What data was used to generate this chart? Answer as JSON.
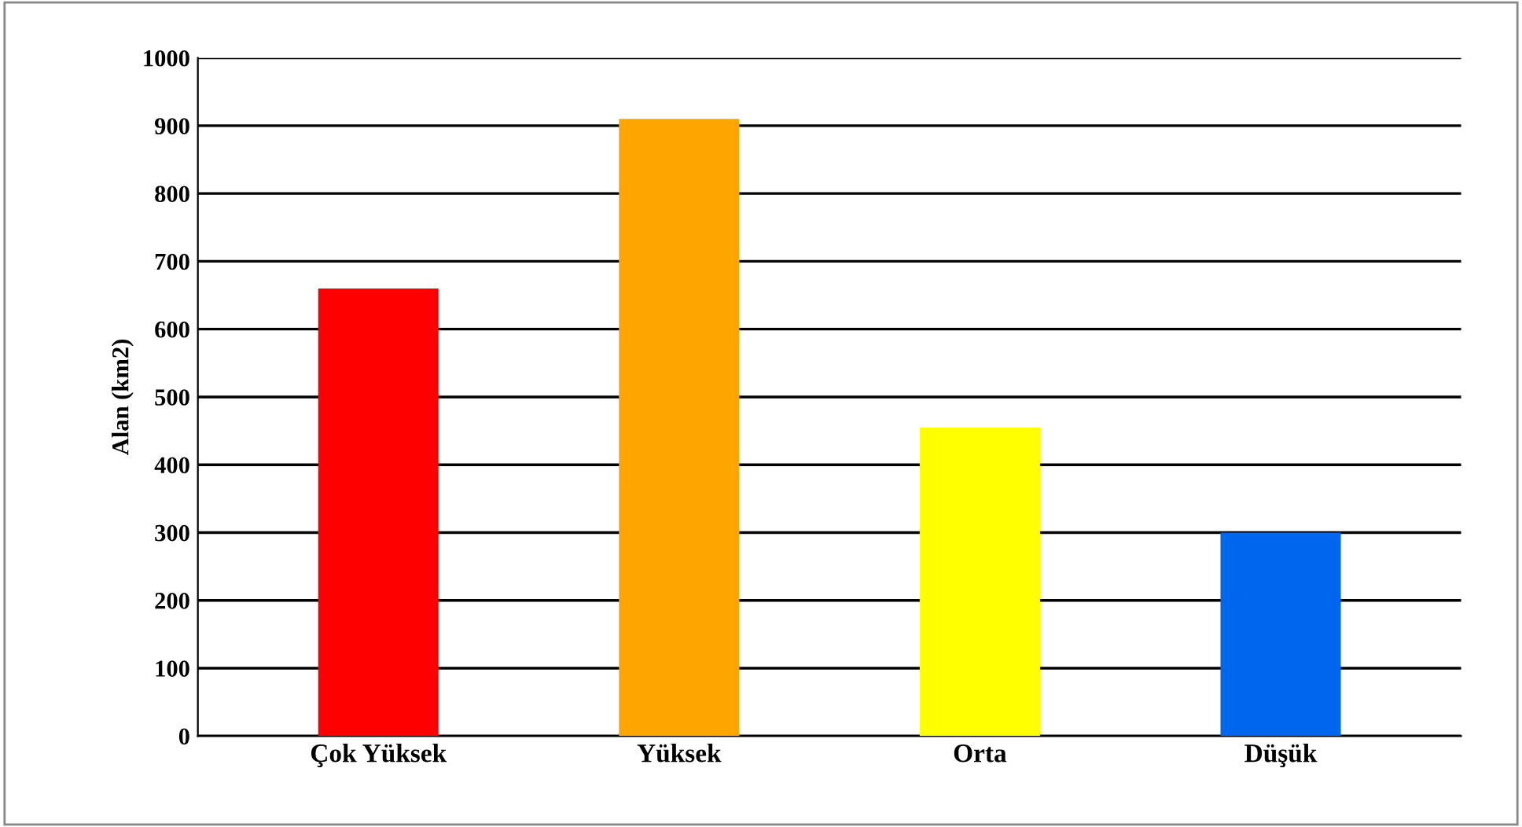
{
  "chart_data": {
    "type": "bar",
    "ylabel": "Alan (km2)",
    "categories": [
      "Çok Yüksek",
      "Yüksek",
      "Orta",
      "Düşük"
    ],
    "values": [
      660,
      910,
      455,
      300
    ],
    "colors": [
      "#ff0000",
      "#ffa500",
      "#ffff00",
      "#0066ee"
    ],
    "ylim": [
      0,
      1000
    ],
    "yticks": [
      0,
      100,
      200,
      300,
      400,
      500,
      600,
      700,
      800,
      900,
      1000
    ],
    "grid": "y"
  }
}
